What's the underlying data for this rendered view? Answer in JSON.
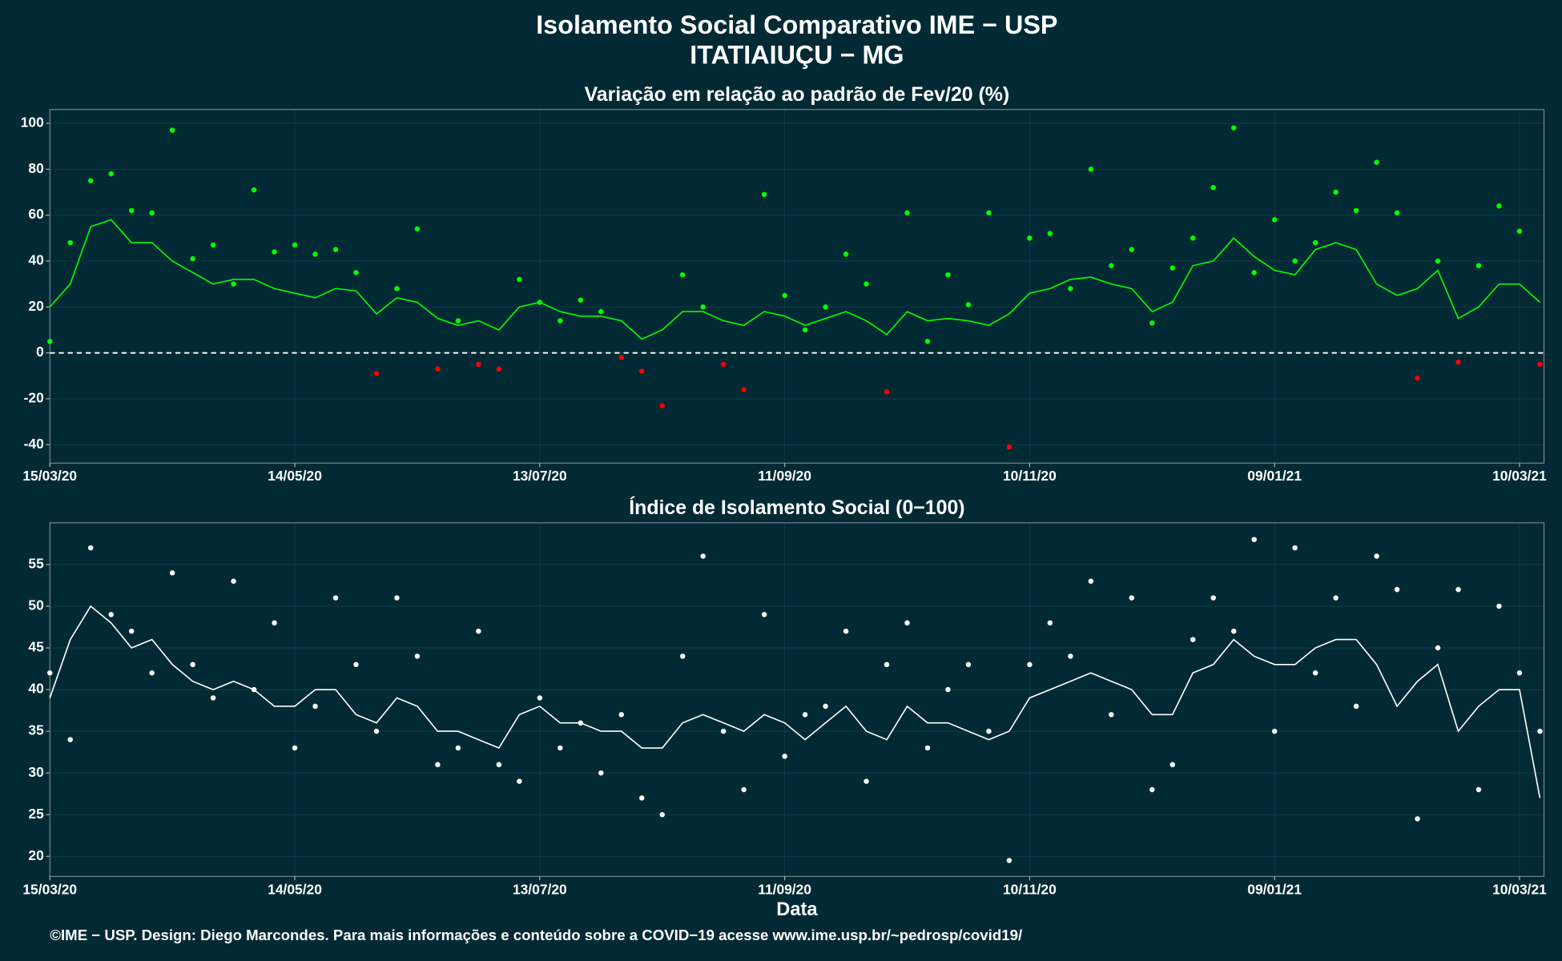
{
  "header": {
    "title": "Isolamento Social Comparativo IME − USP",
    "subtitle": "ITATIAIUÇU − MG"
  },
  "footer": "©IME − USP. Design: Diego Marcondes. Para mais informações e conteúdo sobre a COVID−19 acesse www.ime.usp.br/~pedrosp/covid19/",
  "chart_data": [
    {
      "type": "scatter",
      "title": "Variação em relação ao padrão de Fev/20 (%)",
      "x": [
        "15/03/20",
        "20/03/20",
        "25/03/20",
        "30/03/20",
        "04/04/20",
        "09/04/20",
        "14/04/20",
        "19/04/20",
        "24/04/20",
        "29/04/20",
        "04/05/20",
        "09/05/20",
        "14/05/20",
        "19/05/20",
        "24/05/20",
        "29/05/20",
        "03/06/20",
        "08/06/20",
        "13/06/20",
        "18/06/20",
        "23/06/20",
        "28/06/20",
        "03/07/20",
        "08/07/20",
        "13/07/20",
        "18/07/20",
        "23/07/20",
        "28/07/20",
        "02/08/20",
        "07/08/20",
        "12/08/20",
        "17/08/20",
        "22/08/20",
        "27/08/20",
        "01/09/20",
        "06/09/20",
        "11/09/20",
        "16/09/20",
        "21/09/20",
        "26/09/20",
        "01/10/20",
        "06/10/20",
        "11/10/20",
        "16/10/20",
        "21/10/20",
        "26/10/20",
        "31/10/20",
        "05/11/20",
        "10/11/20",
        "15/11/20",
        "20/11/20",
        "25/11/20",
        "30/11/20",
        "05/12/20",
        "10/12/20",
        "15/12/20",
        "20/12/20",
        "25/12/20",
        "30/12/20",
        "04/01/21",
        "09/01/21",
        "14/01/21",
        "19/01/21",
        "24/01/21",
        "29/01/21",
        "03/02/21",
        "08/02/21",
        "13/02/21",
        "18/02/21",
        "23/02/21",
        "28/02/21",
        "05/03/21",
        "10/03/21",
        "15/03/21"
      ],
      "values": [
        5,
        48,
        75,
        78,
        62,
        61,
        97,
        41,
        47,
        30,
        71,
        44,
        47,
        43,
        45,
        35,
        -9,
        28,
        54,
        -7,
        14,
        -5,
        -7,
        32,
        22,
        14,
        23,
        18,
        -2,
        -8,
        -23,
        34,
        20,
        -5,
        -16,
        69,
        25,
        10,
        20,
        43,
        30,
        -17,
        61,
        5,
        34,
        21,
        61,
        -41,
        50,
        52,
        28,
        80,
        38,
        45,
        13,
        37,
        50,
        72,
        98,
        35,
        58,
        40,
        48,
        70,
        62,
        83,
        61,
        -11,
        40,
        -4,
        38,
        64,
        53,
        -5
      ],
      "trend": [
        20,
        30,
        55,
        58,
        48,
        48,
        40,
        35,
        30,
        32,
        32,
        28,
        26,
        24,
        28,
        27,
        17,
        24,
        22,
        15,
        12,
        14,
        10,
        20,
        22,
        18,
        16,
        16,
        14,
        6,
        10,
        18,
        18,
        14,
        12,
        18,
        16,
        12,
        15,
        18,
        14,
        8,
        18,
        14,
        15,
        14,
        12,
        17,
        26,
        28,
        32,
        33,
        30,
        28,
        18,
        22,
        38,
        40,
        50,
        42,
        36,
        34,
        45,
        48,
        45,
        30,
        25,
        28,
        36,
        15,
        20,
        30,
        30,
        22
      ],
      "color": "#00ff00",
      "negative_color": "#ff0000",
      "trend_color": "#00ff00",
      "reference_line": 0,
      "xlim": [
        "15/03/20",
        "16/03/21"
      ],
      "xticks": [
        "15/03/20",
        "14/05/20",
        "13/07/20",
        "11/09/20",
        "10/11/20",
        "09/01/21",
        "10/03/21"
      ],
      "ylim": [
        -48,
        106
      ],
      "yticks": [
        -40,
        -20,
        0,
        20,
        40,
        60,
        80,
        100
      ],
      "grid": true
    },
    {
      "type": "scatter",
      "title": "Índice de Isolamento Social (0−100)",
      "x_label": "Data",
      "x": [
        "15/03/20",
        "20/03/20",
        "25/03/20",
        "30/03/20",
        "04/04/20",
        "09/04/20",
        "14/04/20",
        "19/04/20",
        "24/04/20",
        "29/04/20",
        "04/05/20",
        "09/05/20",
        "14/05/20",
        "19/05/20",
        "24/05/20",
        "29/05/20",
        "03/06/20",
        "08/06/20",
        "13/06/20",
        "18/06/20",
        "23/06/20",
        "28/06/20",
        "03/07/20",
        "08/07/20",
        "13/07/20",
        "18/07/20",
        "23/07/20",
        "28/07/20",
        "02/08/20",
        "07/08/20",
        "12/08/20",
        "17/08/20",
        "22/08/20",
        "27/08/20",
        "01/09/20",
        "06/09/20",
        "11/09/20",
        "16/09/20",
        "21/09/20",
        "26/09/20",
        "01/10/20",
        "06/10/20",
        "11/10/20",
        "16/10/20",
        "21/10/20",
        "26/10/20",
        "31/10/20",
        "05/11/20",
        "10/11/20",
        "15/11/20",
        "20/11/20",
        "25/11/20",
        "30/11/20",
        "05/12/20",
        "10/12/20",
        "15/12/20",
        "20/12/20",
        "25/12/20",
        "30/12/20",
        "04/01/21",
        "09/01/21",
        "14/01/21",
        "19/01/21",
        "24/01/21",
        "29/01/21",
        "03/02/21",
        "08/02/21",
        "13/02/21",
        "18/02/21",
        "23/02/21",
        "28/02/21",
        "05/03/21",
        "10/03/21",
        "15/03/21"
      ],
      "values": [
        42,
        34,
        57,
        49,
        47,
        42,
        54,
        43,
        39,
        53,
        40,
        48,
        33,
        38,
        51,
        43,
        35,
        51,
        44,
        31,
        33,
        47,
        31,
        29,
        39,
        33,
        36,
        30,
        37,
        27,
        25,
        44,
        56,
        35,
        28,
        49,
        32,
        37,
        38,
        47,
        29,
        43,
        48,
        33,
        40,
        43,
        35,
        19.5,
        43,
        48,
        44,
        53,
        37,
        51,
        28,
        31,
        46,
        51,
        47,
        58,
        35,
        57,
        42,
        51,
        38,
        56,
        52,
        24.5,
        45,
        52,
        28,
        50,
        42,
        35
      ],
      "trend": [
        39,
        46,
        50,
        48,
        45,
        46,
        43,
        41,
        40,
        41,
        40,
        38,
        38,
        40,
        40,
        37,
        36,
        39,
        38,
        35,
        35,
        34,
        33,
        37,
        38,
        36,
        36,
        35,
        35,
        33,
        33,
        36,
        37,
        36,
        35,
        37,
        36,
        34,
        36,
        38,
        35,
        34,
        38,
        36,
        36,
        35,
        34,
        35,
        39,
        40,
        41,
        42,
        41,
        40,
        37,
        37,
        42,
        43,
        46,
        44,
        43,
        43,
        45,
        46,
        46,
        43,
        38,
        41,
        43,
        35,
        38,
        40,
        40,
        27
      ],
      "color": "#ffffff",
      "trend_color": "#ffffff",
      "xlim": [
        "15/03/20",
        "16/03/21"
      ],
      "xticks": [
        "15/03/20",
        "14/05/20",
        "13/07/20",
        "11/09/20",
        "10/11/20",
        "09/01/21",
        "10/03/21"
      ],
      "ylim": [
        17.6,
        60
      ],
      "yticks": [
        20,
        25,
        30,
        35,
        40,
        45,
        50,
        55
      ],
      "grid": true
    }
  ]
}
